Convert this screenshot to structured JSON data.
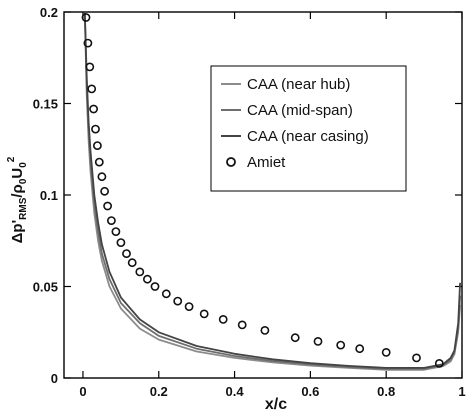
{
  "chart_data": {
    "type": "line",
    "xlabel": "x/c",
    "ylabel": {
      "delta": "Δ",
      "p": "p'",
      "sub_rms": "RMS",
      "slash": "/ρ",
      "sub_zero_1": "0",
      "u": "U",
      "sub_zero_2": "0",
      "sup_two": "2"
    },
    "xlim": [
      -0.05,
      1.0
    ],
    "ylim": [
      0,
      0.2
    ],
    "x_ticks": [
      {
        "value": 0,
        "label": "0"
      },
      {
        "value": 0.2,
        "label": "0.2"
      },
      {
        "value": 0.4,
        "label": "0.4"
      },
      {
        "value": 0.6,
        "label": "0.6"
      },
      {
        "value": 0.8,
        "label": "0.8"
      },
      {
        "value": 1.0,
        "label": "1"
      }
    ],
    "y_ticks": [
      {
        "value": 0,
        "label": "0"
      },
      {
        "value": 0.05,
        "label": "0.05"
      },
      {
        "value": 0.1,
        "label": "0.1"
      },
      {
        "value": 0.15,
        "label": "0.15"
      },
      {
        "value": 0.2,
        "label": "0.2"
      }
    ],
    "grid": false,
    "legend_position": "top-right",
    "series": [
      {
        "name": "CAA (near hub)",
        "style": "line",
        "color": "#8c8c8c",
        "x": [
          0.005,
          0.01,
          0.015,
          0.02,
          0.03,
          0.04,
          0.05,
          0.07,
          0.1,
          0.15,
          0.2,
          0.3,
          0.4,
          0.5,
          0.6,
          0.7,
          0.8,
          0.9,
          0.95,
          0.97,
          0.98,
          0.99,
          0.995
        ],
        "values": [
          0.2,
          0.155,
          0.13,
          0.113,
          0.09,
          0.075,
          0.064,
          0.05,
          0.038,
          0.027,
          0.021,
          0.0145,
          0.011,
          0.0085,
          0.0068,
          0.0055,
          0.0045,
          0.0045,
          0.0065,
          0.009,
          0.013,
          0.025,
          0.04
        ]
      },
      {
        "name": "CAA (mid-span)",
        "style": "line",
        "color": "#6e6e6e",
        "x": [
          0.005,
          0.01,
          0.015,
          0.02,
          0.03,
          0.04,
          0.05,
          0.07,
          0.1,
          0.15,
          0.2,
          0.3,
          0.4,
          0.5,
          0.6,
          0.7,
          0.8,
          0.9,
          0.95,
          0.97,
          0.98,
          0.99,
          0.995
        ],
        "values": [
          0.2,
          0.16,
          0.135,
          0.118,
          0.095,
          0.08,
          0.068,
          0.054,
          0.041,
          0.03,
          0.023,
          0.016,
          0.012,
          0.0093,
          0.0074,
          0.006,
          0.005,
          0.005,
          0.007,
          0.01,
          0.014,
          0.027,
          0.045
        ]
      },
      {
        "name": "CAA (near casing)",
        "style": "line",
        "color": "#444444",
        "x": [
          0.005,
          0.01,
          0.015,
          0.02,
          0.03,
          0.04,
          0.05,
          0.07,
          0.1,
          0.15,
          0.2,
          0.3,
          0.4,
          0.5,
          0.6,
          0.7,
          0.8,
          0.9,
          0.95,
          0.97,
          0.98,
          0.99,
          0.995
        ],
        "values": [
          0.2,
          0.165,
          0.14,
          0.124,
          0.1,
          0.085,
          0.073,
          0.058,
          0.044,
          0.032,
          0.025,
          0.0175,
          0.0132,
          0.0102,
          0.0081,
          0.0066,
          0.0055,
          0.0055,
          0.0075,
          0.011,
          0.015,
          0.03,
          0.052
        ]
      },
      {
        "name": "Amiet",
        "style": "marker",
        "color": "#111111",
        "x": [
          0.008,
          0.013,
          0.018,
          0.023,
          0.028,
          0.033,
          0.038,
          0.043,
          0.05,
          0.057,
          0.065,
          0.075,
          0.087,
          0.1,
          0.115,
          0.13,
          0.15,
          0.17,
          0.19,
          0.22,
          0.25,
          0.28,
          0.32,
          0.37,
          0.42,
          0.48,
          0.56,
          0.62,
          0.68,
          0.73,
          0.8,
          0.88,
          0.94
        ],
        "values": [
          0.197,
          0.183,
          0.17,
          0.158,
          0.147,
          0.136,
          0.127,
          0.118,
          0.11,
          0.102,
          0.094,
          0.086,
          0.08,
          0.074,
          0.068,
          0.063,
          0.058,
          0.054,
          0.05,
          0.046,
          0.042,
          0.039,
          0.035,
          0.032,
          0.029,
          0.026,
          0.022,
          0.02,
          0.018,
          0.016,
          0.014,
          0.011,
          0.008
        ]
      }
    ]
  }
}
